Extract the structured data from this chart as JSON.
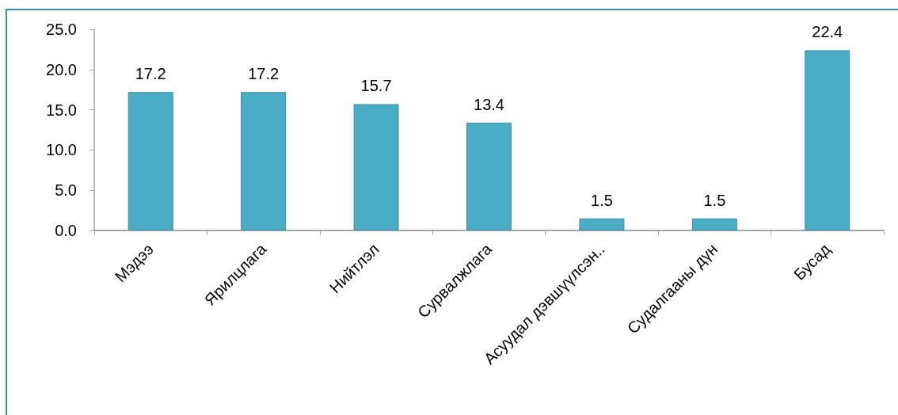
{
  "chart_data": {
    "type": "bar",
    "categories": [
      "Мэдээ",
      "Ярилцлага",
      "Нийтлэл",
      "Сурвалжлага",
      "Асуудал дэвшүүлсэн..",
      "Судалгааны дүн",
      "Бусад"
    ],
    "values": [
      17.2,
      17.2,
      15.7,
      13.4,
      1.5,
      1.5,
      22.4
    ],
    "color": "#4bacc6",
    "ylim": [
      0,
      25
    ],
    "yticks": [
      {
        "value": 0,
        "label": "0.0"
      },
      {
        "value": 5,
        "label": "5.0"
      },
      {
        "value": 10,
        "label": "10.0"
      },
      {
        "value": 15,
        "label": "15.0"
      },
      {
        "value": 20,
        "label": "20.0"
      },
      {
        "value": 25,
        "label": "25.0"
      }
    ],
    "grid": false,
    "data_labels": true
  }
}
